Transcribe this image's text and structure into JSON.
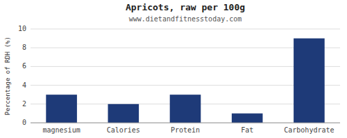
{
  "chart_data": {
    "type": "bar",
    "title": "Apricots, raw per 100g",
    "subtitle": "www.dietandfitnesstoday.com",
    "categories": [
      "magnesium",
      "Calories",
      "Protein",
      "Fat",
      "Carbohydrate"
    ],
    "values": [
      3.0,
      2.0,
      3.0,
      1.0,
      9.0
    ],
    "color": "#1e3a78",
    "ylabel": "Percentage of RDH (%)",
    "ylim": [
      0,
      10
    ],
    "yticks": [
      0,
      2,
      4,
      6,
      8,
      10
    ],
    "grid": true
  }
}
